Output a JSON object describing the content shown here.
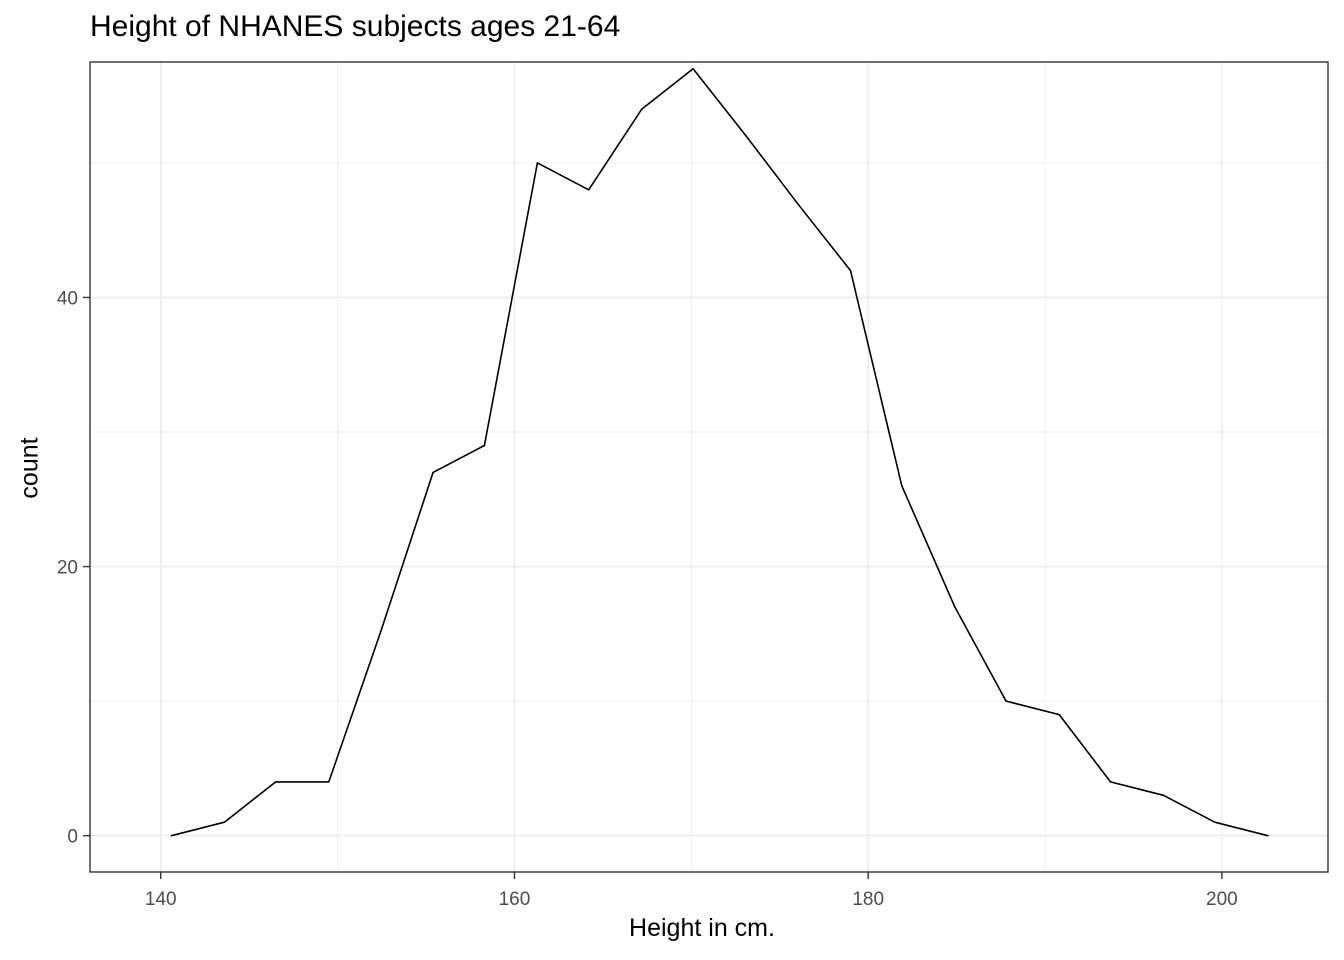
{
  "chart_data": {
    "type": "line",
    "title": "Height of NHANES subjects ages 21-64",
    "xlabel": "Height in cm.",
    "ylabel": "count",
    "xlim": [
      136,
      206
    ],
    "ylim": [
      -2.7,
      57.5
    ],
    "x_ticks": [
      140,
      160,
      180,
      200
    ],
    "y_ticks": [
      0,
      20,
      40
    ],
    "grid": true,
    "series": [
      {
        "x": [
          140.6,
          143.6,
          146.5,
          149.5,
          152.4,
          155.4,
          158.3,
          161.3,
          164.2,
          167.2,
          170.1,
          173.1,
          176.0,
          179.0,
          181.9,
          184.9,
          187.8,
          190.8,
          193.7,
          196.7,
          199.6,
          202.6
        ],
        "values": [
          0,
          1,
          4,
          4,
          15,
          27,
          29,
          50,
          48,
          54,
          57,
          52,
          47,
          42,
          26,
          17,
          10,
          9,
          4,
          3,
          1,
          0
        ]
      }
    ],
    "line_color": "#000000",
    "grid_color": "#ebebeb"
  }
}
